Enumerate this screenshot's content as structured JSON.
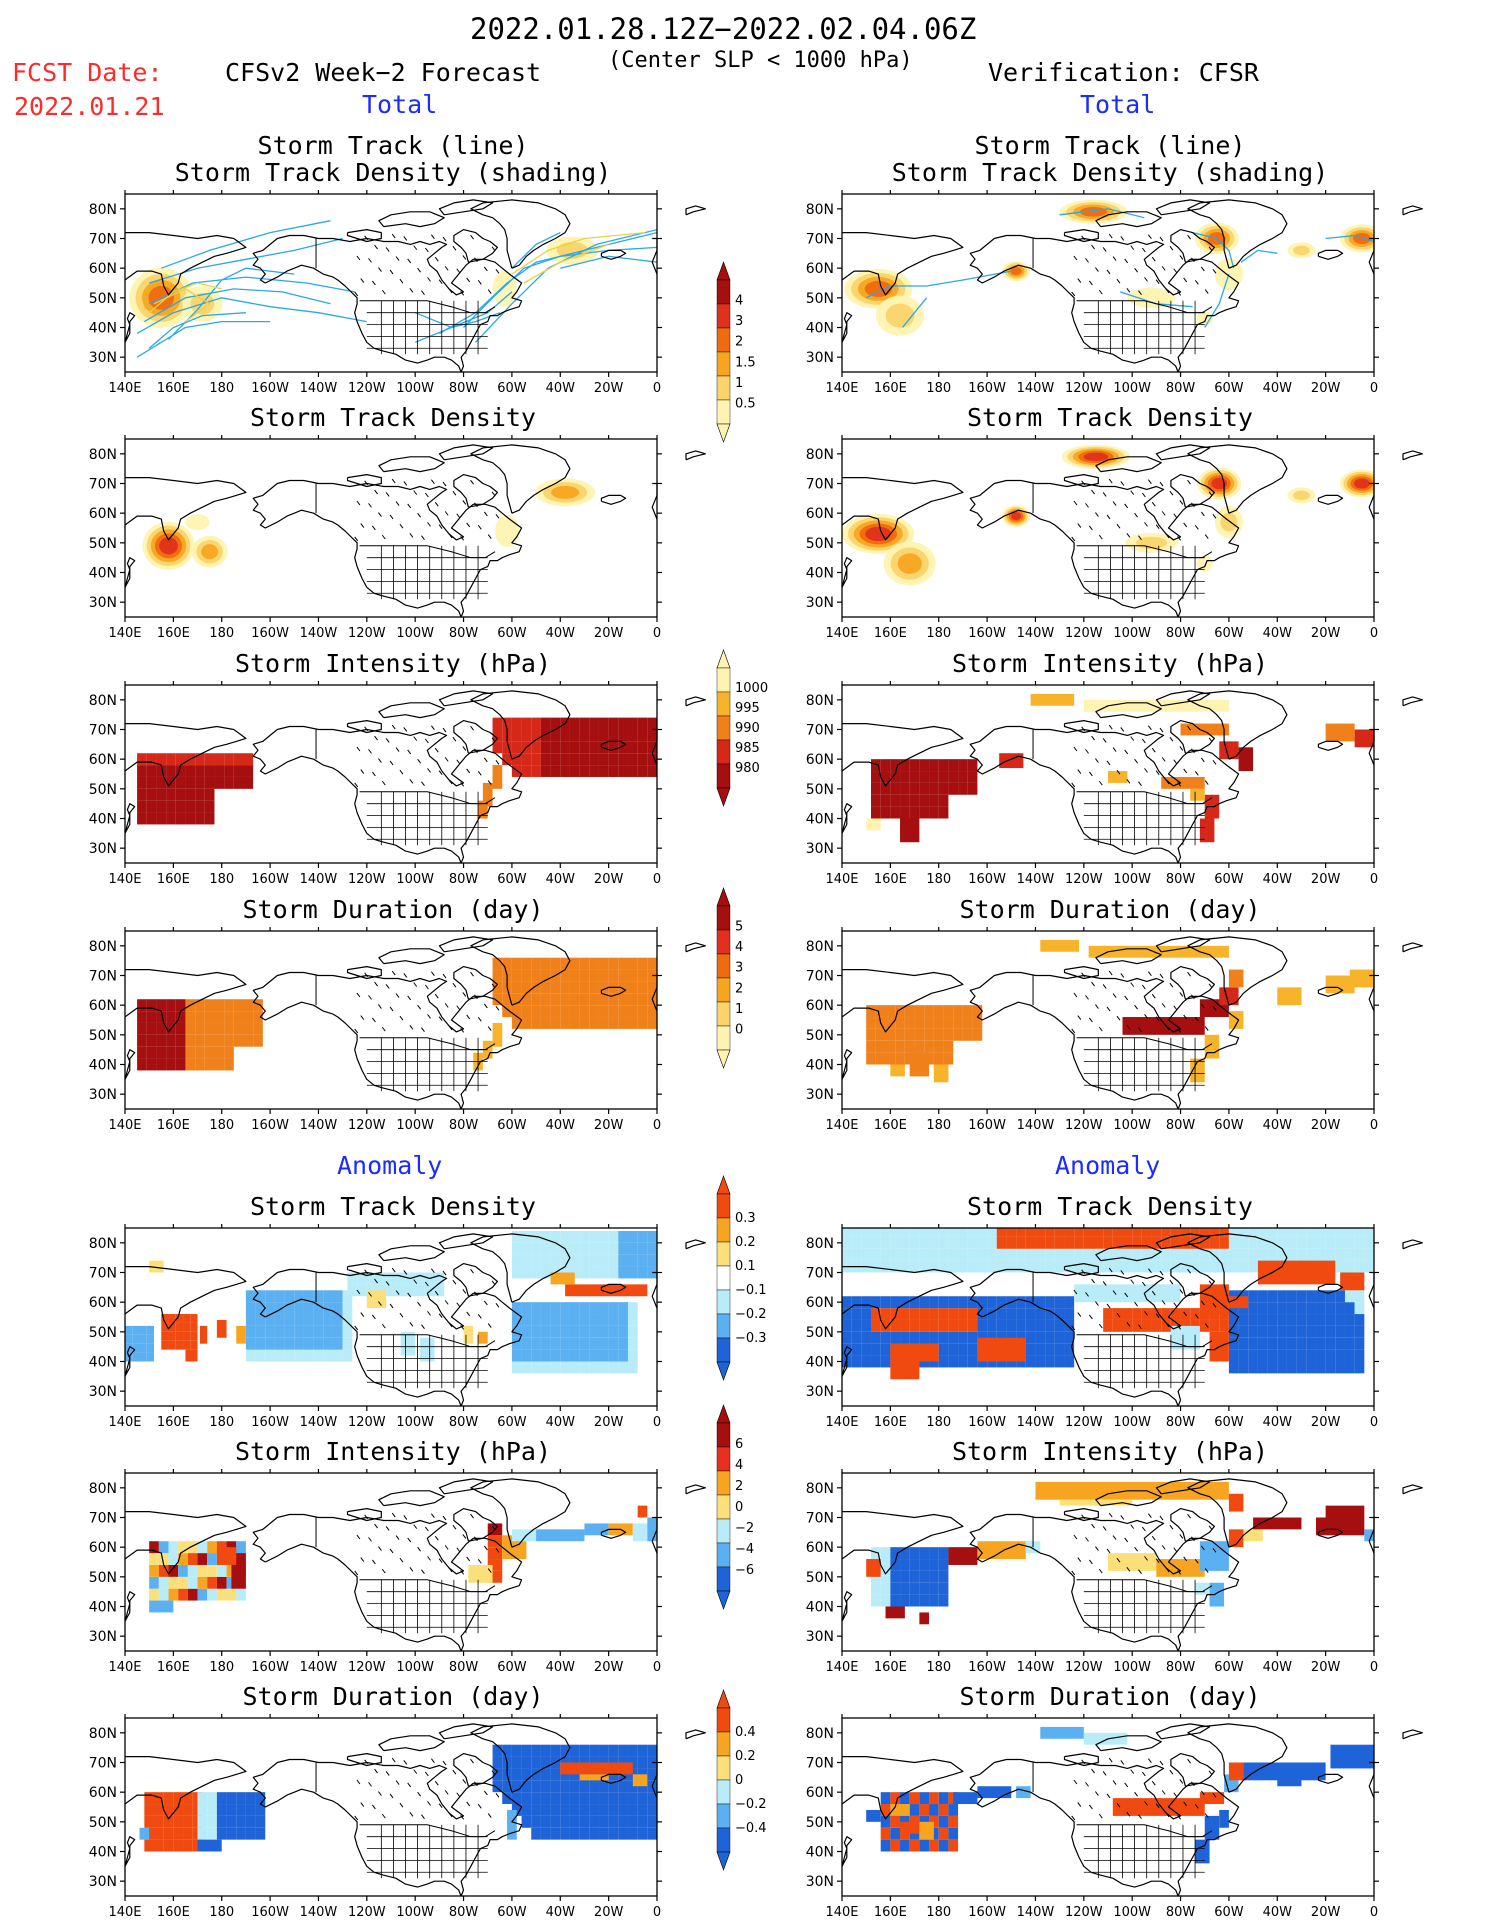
{
  "header": {
    "period": "2022.01.28.12Z−2022.02.04.06Z",
    "subtitle": "(Center SLP < 1000 hPa)",
    "fcst_label": "FCST Date:",
    "fcst_date": "2022.01.21",
    "left_model": "CFSv2 Week−2 Forecast",
    "right_model": "Verification: CFSR",
    "left_total": "Total",
    "right_total": "Total",
    "left_anomaly": "Anomaly",
    "right_anomaly": "Anomaly"
  },
  "panel_titles": {
    "track_line": "Storm Track (line)",
    "track_density_shading": "Storm Track Density (shading)",
    "track_density": "Storm Track Density",
    "intensity": "Storm Intensity (hPa)",
    "duration": "Storm Duration (day)"
  },
  "map_axes": {
    "lat_labels": [
      "80N",
      "70N",
      "60N",
      "50N",
      "40N",
      "30N"
    ],
    "lon_labels": [
      "140E",
      "160E",
      "180",
      "160W",
      "140W",
      "120W",
      "100W",
      "80W",
      "60W",
      "40W",
      "20W",
      "0"
    ]
  },
  "colorbars": {
    "density_total": {
      "labels": [
        "4",
        "3",
        "2",
        "1.5",
        "1",
        "0.5"
      ],
      "colors": [
        "#a50f0f",
        "#e0301e",
        "#f06a10",
        "#f7a520",
        "#fbd36a",
        "#fef3b0"
      ]
    },
    "intensity_total": {
      "labels": [
        "1000",
        "995",
        "990",
        "985",
        "980"
      ],
      "colors": [
        "#fef3b0",
        "#f7b42a",
        "#f0801a",
        "#d62818",
        "#a50f0f"
      ]
    },
    "duration_total": {
      "labels": [
        "5",
        "4",
        "3",
        "2",
        "1",
        "0"
      ],
      "colors": [
        "#a50f0f",
        "#e0301e",
        "#f06a10",
        "#f7a520",
        "#fbd36a",
        "#fef3b0"
      ]
    },
    "density_anom": {
      "labels": [
        "0.3",
        "0.2",
        "0.1",
        "−0.1",
        "−0.2",
        "−0.3"
      ],
      "colors": [
        "#f04a10",
        "#f7a520",
        "#fbe07a",
        "#ffffff",
        "#b8ecf8",
        "#5ab0f0",
        "#1e64d8"
      ]
    },
    "intensity_anom": {
      "labels": [
        "6",
        "4",
        "2",
        "0",
        "−2",
        "−4",
        "−6"
      ],
      "colors": [
        "#a50f0f",
        "#e8301e",
        "#f7a520",
        "#fbe07a",
        "#b8ecf8",
        "#5ab0f0",
        "#1e64d8"
      ]
    },
    "duration_anom": {
      "labels": [
        "0.4",
        "0.2",
        "0",
        "−0.2",
        "−0.4"
      ],
      "colors": [
        "#f04a10",
        "#f7a520",
        "#fbe07a",
        "#b8ecf8",
        "#5ab0f0",
        "#1e64d8"
      ]
    }
  },
  "colors": {
    "track_line": "#2aa8e8",
    "coast": "#000000",
    "fcst_text": "#ff2a2a",
    "section_text": "#1a2cff"
  }
}
